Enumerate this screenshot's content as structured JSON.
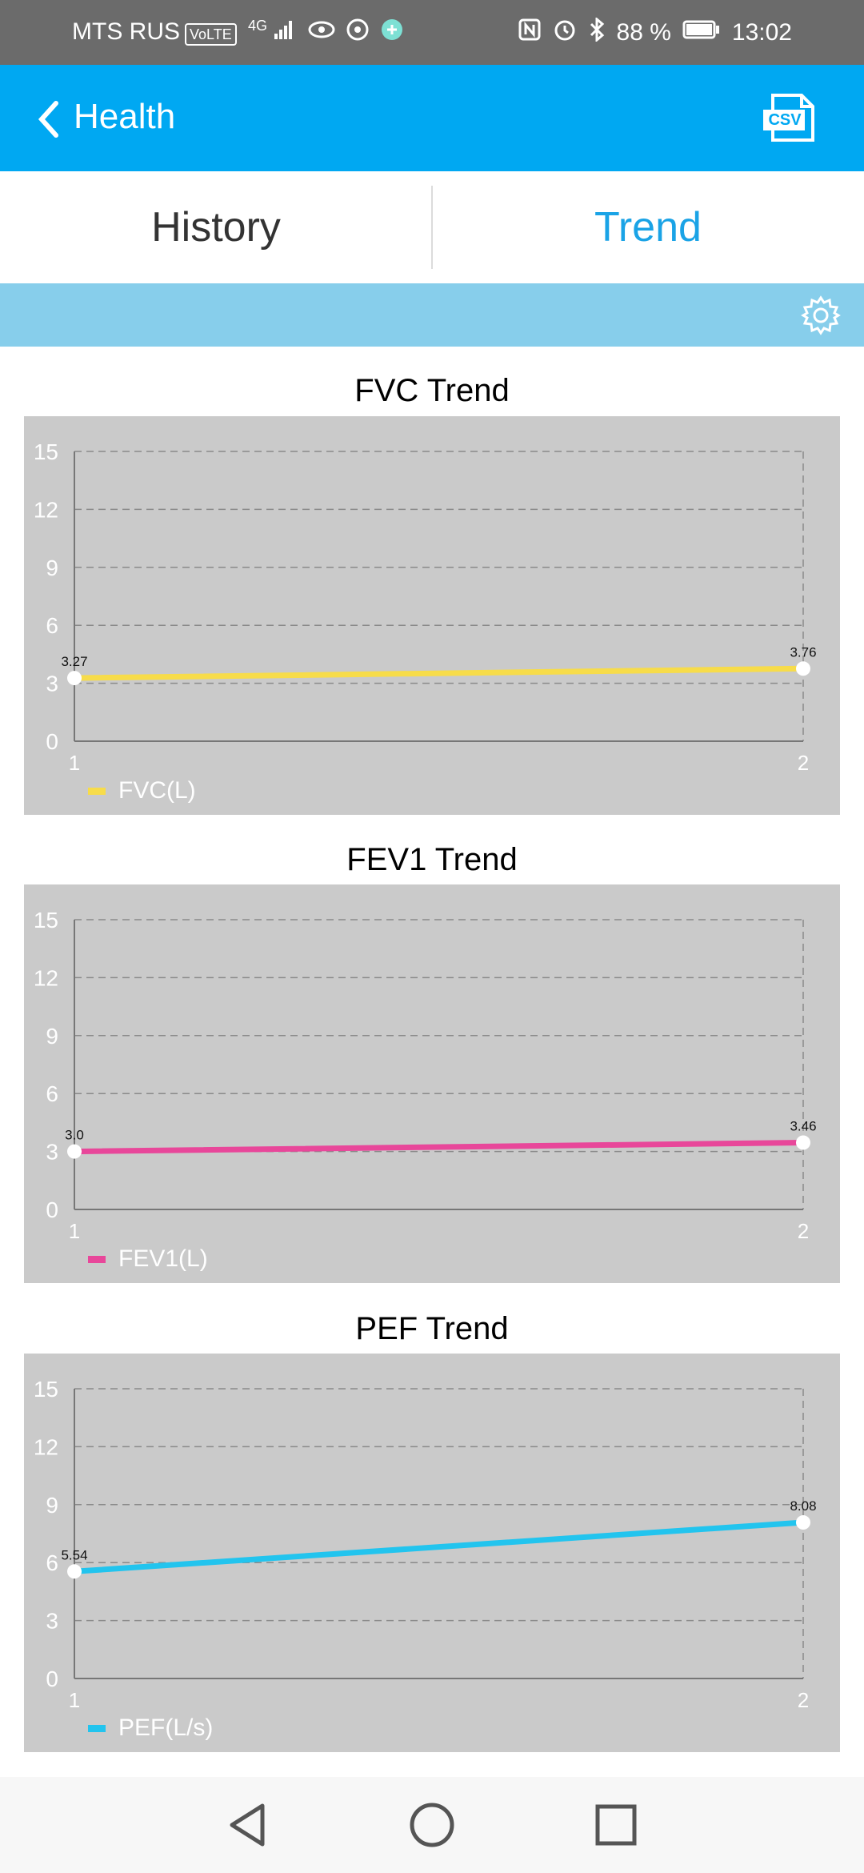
{
  "status_bar": {
    "carrier": "MTS RUS",
    "volte": "VoLTE",
    "network": "4G",
    "battery": "88 %",
    "time": "13:02"
  },
  "app_bar": {
    "title": "Health",
    "icons": [
      "back-chevron-icon",
      "csv-export-icon"
    ],
    "csv_label": "CSV"
  },
  "tabs": [
    {
      "label": "History",
      "active": false
    },
    {
      "label": "Trend",
      "active": true
    }
  ],
  "colors": {
    "app_bar": "#00a8f2",
    "active_tab": "#1aa3e6",
    "filter_bar": "#87ceeb",
    "chart_panel": "#cacaca"
  },
  "chart_data": [
    {
      "type": "line",
      "title": "FVC Trend",
      "x": [
        1,
        2
      ],
      "ylim": [
        0,
        15
      ],
      "yticks": [
        0,
        3,
        6,
        9,
        12,
        15
      ],
      "grid": true,
      "legend_position": "bottom-left",
      "series": [
        {
          "name": "FVC(L)",
          "values": [
            3.27,
            3.76
          ],
          "labels": [
            "3.27",
            "3.76"
          ],
          "color": "#f7dc4a"
        }
      ]
    },
    {
      "type": "line",
      "title": "FEV1 Trend",
      "x": [
        1,
        2
      ],
      "ylim": [
        0,
        15
      ],
      "yticks": [
        0,
        3,
        6,
        9,
        12,
        15
      ],
      "grid": true,
      "legend_position": "bottom-left",
      "series": [
        {
          "name": "FEV1(L)",
          "values": [
            3.0,
            3.46
          ],
          "labels": [
            "3.0",
            "3.46"
          ],
          "color": "#e8479a"
        }
      ]
    },
    {
      "type": "line",
      "title": "PEF Trend",
      "x": [
        1,
        2
      ],
      "ylim": [
        0,
        15
      ],
      "yticks": [
        0,
        3,
        6,
        9,
        12,
        15
      ],
      "grid": true,
      "legend_position": "bottom-left",
      "series": [
        {
          "name": "PEF(L/s)",
          "values": [
            5.54,
            8.08
          ],
          "labels": [
            "5.54",
            "8.08"
          ],
          "color": "#22c4ee"
        }
      ]
    }
  ]
}
